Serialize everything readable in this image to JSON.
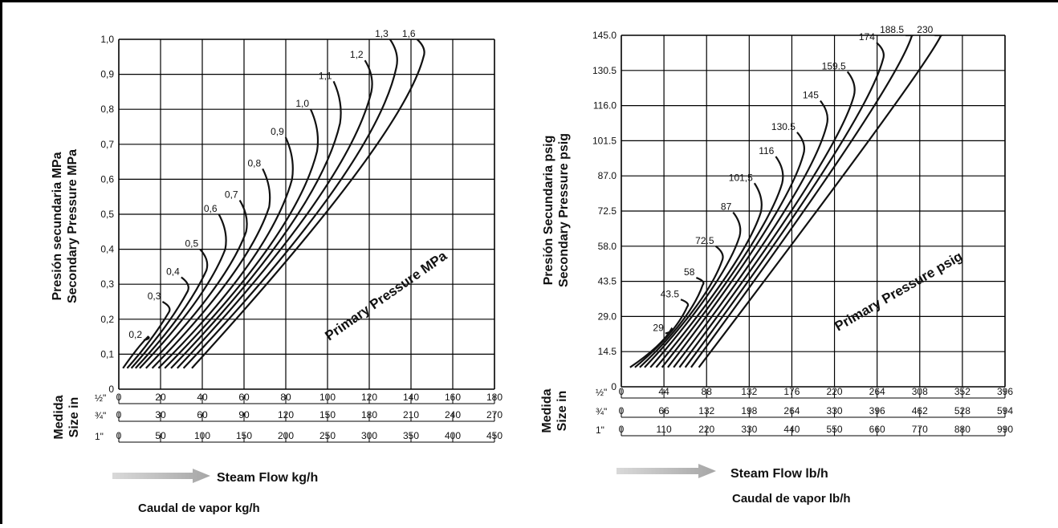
{
  "chart_data": [
    {
      "type": "line",
      "y_axis_labels": [
        "Presión secundaria MPa",
        "Secondary Pressure MPa"
      ],
      "ylim": [
        0,
        1.0
      ],
      "y_ticks": [
        "0",
        "0,1",
        "0,2",
        "0,3",
        "0,4",
        "0,5",
        "0,6",
        "0,7",
        "0,8",
        "0,9",
        "1,0"
      ],
      "size_label": [
        "Medida",
        "Size in"
      ],
      "x_scales": [
        {
          "size": "½\"",
          "ticks": [
            "0",
            "20",
            "40",
            "60",
            "80",
            "100",
            "120",
            "140",
            "160",
            "180"
          ]
        },
        {
          "size": "¾\"",
          "ticks": [
            "0",
            "30",
            "60",
            "90",
            "120",
            "150",
            "180",
            "210",
            "240",
            "270"
          ]
        },
        {
          "size": "1\"",
          "ticks": [
            "0",
            "50",
            "100",
            "150",
            "200",
            "250",
            "300",
            "350",
            "400",
            "450"
          ]
        }
      ],
      "xlim": [
        0,
        180
      ],
      "grid": true,
      "annotation": "Primary Pressure MPa",
      "xlabel": "Steam Flow kg/h",
      "xlabel_es": "Caudal de vapor kg/h",
      "series": [
        {
          "name": "0,2",
          "points": [
            [
              2,
              0.06
            ],
            [
              9,
              0.12
            ],
            [
              14,
              0.15
            ]
          ],
          "end": [
            15,
            0.14
          ]
        },
        {
          "name": "0,3",
          "points": [
            [
              4,
              0.06
            ],
            [
              16,
              0.14
            ],
            [
              24,
              0.22
            ]
          ],
          "end": [
            24,
            0.25
          ]
        },
        {
          "name": "0,4",
          "points": [
            [
              6,
              0.06
            ],
            [
              24,
              0.18
            ],
            [
              33,
              0.28
            ]
          ],
          "end": [
            33,
            0.32
          ]
        },
        {
          "name": "0,5",
          "points": [
            [
              8,
              0.06
            ],
            [
              33,
              0.22
            ],
            [
              42,
              0.34
            ]
          ],
          "end": [
            42,
            0.4
          ]
        },
        {
          "name": "0,6",
          "points": [
            [
              10,
              0.06
            ],
            [
              42,
              0.26
            ],
            [
              51,
              0.4
            ]
          ],
          "end": [
            51,
            0.5
          ]
        },
        {
          "name": "0,7",
          "points": [
            [
              13,
              0.06
            ],
            [
              52,
              0.3
            ],
            [
              61,
              0.45
            ]
          ],
          "end": [
            61,
            0.54
          ]
        },
        {
          "name": "0,8",
          "points": [
            [
              16,
              0.06
            ],
            [
              62,
              0.34
            ],
            [
              72,
              0.52
            ]
          ],
          "end": [
            72,
            0.63
          ]
        },
        {
          "name": "0,9",
          "points": [
            [
              19,
              0.06
            ],
            [
              73,
              0.38
            ],
            [
              83,
              0.6
            ]
          ],
          "end": [
            83,
            0.72
          ]
        },
        {
          "name": "1,0",
          "points": [
            [
              22,
              0.06
            ],
            [
              85,
              0.44
            ],
            [
              95,
              0.68
            ]
          ],
          "end": [
            95,
            0.8
          ]
        },
        {
          "name": "1,1",
          "points": [
            [
              25,
              0.06
            ],
            [
              96,
              0.5
            ],
            [
              106,
              0.76
            ]
          ],
          "end": [
            106,
            0.88
          ]
        },
        {
          "name": "1,2",
          "points": [
            [
              28,
              0.06
            ],
            [
              110,
              0.58
            ],
            [
              121,
              0.85
            ]
          ],
          "end": [
            121,
            0.94
          ]
        },
        {
          "name": "1,3",
          "points": [
            [
              31,
              0.06
            ],
            [
              123,
              0.64
            ],
            [
              133,
              0.92
            ]
          ],
          "end": [
            133,
            1.0
          ]
        },
        {
          "name": "1,6",
          "points": [
            [
              35,
              0.06
            ],
            [
              136,
              0.72
            ],
            [
              146,
              0.95
            ]
          ],
          "end": [
            146,
            1.0
          ]
        }
      ]
    },
    {
      "type": "line",
      "y_axis_labels": [
        "Presión Secundaria psig",
        "Secondary Pressure psig"
      ],
      "ylim": [
        0,
        145.0
      ],
      "y_ticks": [
        "0",
        "14.5",
        "29.0",
        "43.5",
        "58.0",
        "72.5",
        "87.0",
        "101.5",
        "116.0",
        "130.5",
        "145.0"
      ],
      "size_label": [
        "Medida",
        "Size in"
      ],
      "x_scales": [
        {
          "size": "½\"",
          "ticks": [
            "0",
            "44",
            "88",
            "132",
            "176",
            "220",
            "264",
            "308",
            "352",
            "396"
          ]
        },
        {
          "size": "¾\"",
          "ticks": [
            "0",
            "66",
            "132",
            "198",
            "264",
            "330",
            "396",
            "462",
            "528",
            "594"
          ]
        },
        {
          "size": "1\"",
          "ticks": [
            "0",
            "110",
            "220",
            "330",
            "440",
            "550",
            "660",
            "770",
            "880",
            "990"
          ]
        }
      ],
      "xlim": [
        0,
        396
      ],
      "grid": true,
      "annotation": "Primary Pressure psig",
      "xlabel": "Steam Flow lb/h",
      "xlabel_es": "Caudal de vapor lb/h",
      "series": [
        {
          "name": "29",
          "points": [
            [
              9,
              8
            ],
            [
              42,
              17
            ],
            [
              52,
              24
            ]
          ],
          "end": [
            52,
            22
          ]
        },
        {
          "name": "43.5",
          "points": [
            [
              14,
              8
            ],
            [
              56,
              22
            ],
            [
              68,
              33
            ]
          ],
          "end": [
            68,
            36
          ]
        },
        {
          "name": "58",
          "points": [
            [
              19,
              8
            ],
            [
              72,
              28
            ],
            [
              84,
              42
            ]
          ],
          "end": [
            84,
            45
          ]
        },
        {
          "name": "72.5",
          "points": [
            [
              24,
              8
            ],
            [
              90,
              36
            ],
            [
              104,
              52
            ]
          ],
          "end": [
            104,
            58
          ]
        },
        {
          "name": "87",
          "points": [
            [
              30,
              8
            ],
            [
              108,
              44
            ],
            [
              122,
              62
            ]
          ],
          "end": [
            122,
            72
          ]
        },
        {
          "name": "101,5",
          "points": [
            [
              36,
              8
            ],
            [
              128,
              52
            ],
            [
              144,
              72
            ]
          ],
          "end": [
            144,
            84
          ]
        },
        {
          "name": "116",
          "points": [
            [
              42,
              8
            ],
            [
              150,
              62
            ],
            [
              166,
              84
            ]
          ],
          "end": [
            166,
            95
          ]
        },
        {
          "name": "130.5",
          "points": [
            [
              48,
              8
            ],
            [
              172,
              72
            ],
            [
              188,
              96
            ]
          ],
          "end": [
            188,
            105
          ]
        },
        {
          "name": "145",
          "points": [
            [
              54,
              8
            ],
            [
              196,
              82
            ],
            [
              212,
              108
            ]
          ],
          "end": [
            212,
            118
          ]
        },
        {
          "name": "159.5",
          "points": [
            [
              60,
              8
            ],
            [
              222,
              94
            ],
            [
              240,
              120
            ]
          ],
          "end": [
            240,
            130
          ]
        },
        {
          "name": "174",
          "points": [
            [
              66,
              8
            ],
            [
              252,
              108
            ],
            [
              270,
              135
            ]
          ],
          "end": [
            270,
            142
          ]
        },
        {
          "name": "188.5",
          "points": [
            [
              72,
              8
            ],
            [
              282,
              122
            ],
            [
              300,
              145
            ]
          ],
          "end": [
            300,
            145
          ]
        },
        {
          "name": "230",
          "points": [
            [
              80,
              8
            ],
            [
              312,
              130
            ],
            [
              330,
              145
            ]
          ],
          "end": [
            330,
            145
          ]
        }
      ]
    }
  ]
}
